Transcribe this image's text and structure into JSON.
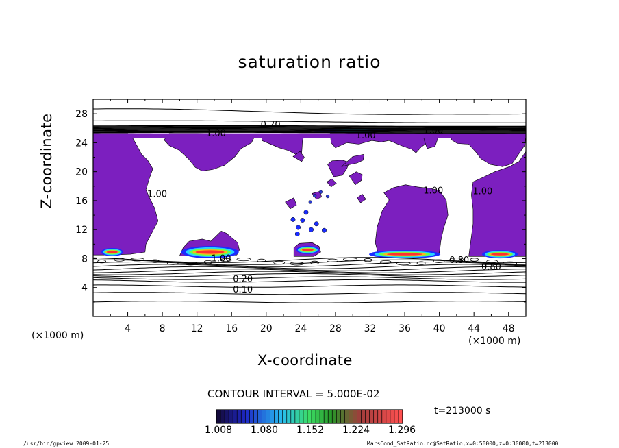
{
  "chart_data": {
    "type": "heatmap",
    "title": "saturation ratio",
    "xlabel": "X-coordinate",
    "ylabel": "Z-coordinate",
    "x_unit": "(×1000 m)",
    "y_unit": "(×1000 m)",
    "xlim": [
      0,
      50
    ],
    "ylim": [
      0,
      30
    ],
    "x_ticks": [
      "4",
      "8",
      "12",
      "16",
      "20",
      "24",
      "28",
      "32",
      "36",
      "40",
      "44",
      "48"
    ],
    "y_ticks": [
      "4",
      "8",
      "12",
      "16",
      "20",
      "24",
      "28"
    ],
    "x_tick_values": [
      4,
      8,
      12,
      16,
      20,
      24,
      28,
      32,
      36,
      40,
      44,
      48
    ],
    "y_tick_values": [
      4,
      8,
      12,
      16,
      20,
      24,
      28
    ],
    "contour_interval_text": "CONTOUR INTERVAL = 5.000E-02",
    "time_text": "t=213000 s",
    "colorbar_ticks": [
      "1.008",
      "1.080",
      "1.152",
      "1.224",
      "1.296"
    ],
    "colorbar_range": [
      1.008,
      1.332
    ],
    "colors": {
      "supersat_region": "#7c1fbf",
      "low_colorbar": "#120a4a",
      "high_colorbar": "#ff3030"
    },
    "contour_labels": [
      {
        "text": "0.20",
        "x": 20.5,
        "z": 26.1
      },
      {
        "text": "1.00",
        "x": 14.2,
        "z": 24.9
      },
      {
        "text": "1.00",
        "x": 31.5,
        "z": 24.6
      },
      {
        "text": "1.00",
        "x": 39.3,
        "z": 25.3
      },
      {
        "text": "1.00",
        "x": 7.4,
        "z": 16.5
      },
      {
        "text": "1.00",
        "x": 39.3,
        "z": 17.0
      },
      {
        "text": "1.00",
        "x": 45.0,
        "z": 16.9
      },
      {
        "text": "1.00",
        "x": 14.8,
        "z": 7.6
      },
      {
        "text": "0.80",
        "x": 42.3,
        "z": 7.4
      },
      {
        "text": "0.80",
        "x": 46.0,
        "z": 6.5
      },
      {
        "text": "0.20",
        "x": 17.3,
        "z": 4.8
      },
      {
        "text": "0.10",
        "x": 17.3,
        "z": 3.3
      }
    ],
    "regions": [
      {
        "name": "upper-left-region",
        "z_bottom": 8.5,
        "x": [
          0.1,
          4.2,
          6.5,
          8.1,
          9.5,
          14.6,
          20.8,
          22.4,
          24.2,
          24.3
        ]
      },
      {
        "name": "upper-mid-region",
        "x": [
          24.3,
          33,
          38.1,
          41.5,
          49.8
        ]
      },
      {
        "name": "central-right-region",
        "x": [
          31.7,
          32,
          34.5,
          36.2,
          37.9,
          40.0
        ]
      },
      {
        "name": "right-region",
        "x": [
          43.8,
          45,
          49.8
        ]
      },
      {
        "name": "mid-left-region",
        "x": [
          8.0,
          10.3,
          12.5,
          14.9,
          16.2
        ]
      }
    ]
  },
  "footer": {
    "left": "/usr/bin/gpview  2009-01-25",
    "right": "MarsCond_SatRatio.nc@SatRatio,x=0:50000,z=0:30000,t=213000"
  }
}
